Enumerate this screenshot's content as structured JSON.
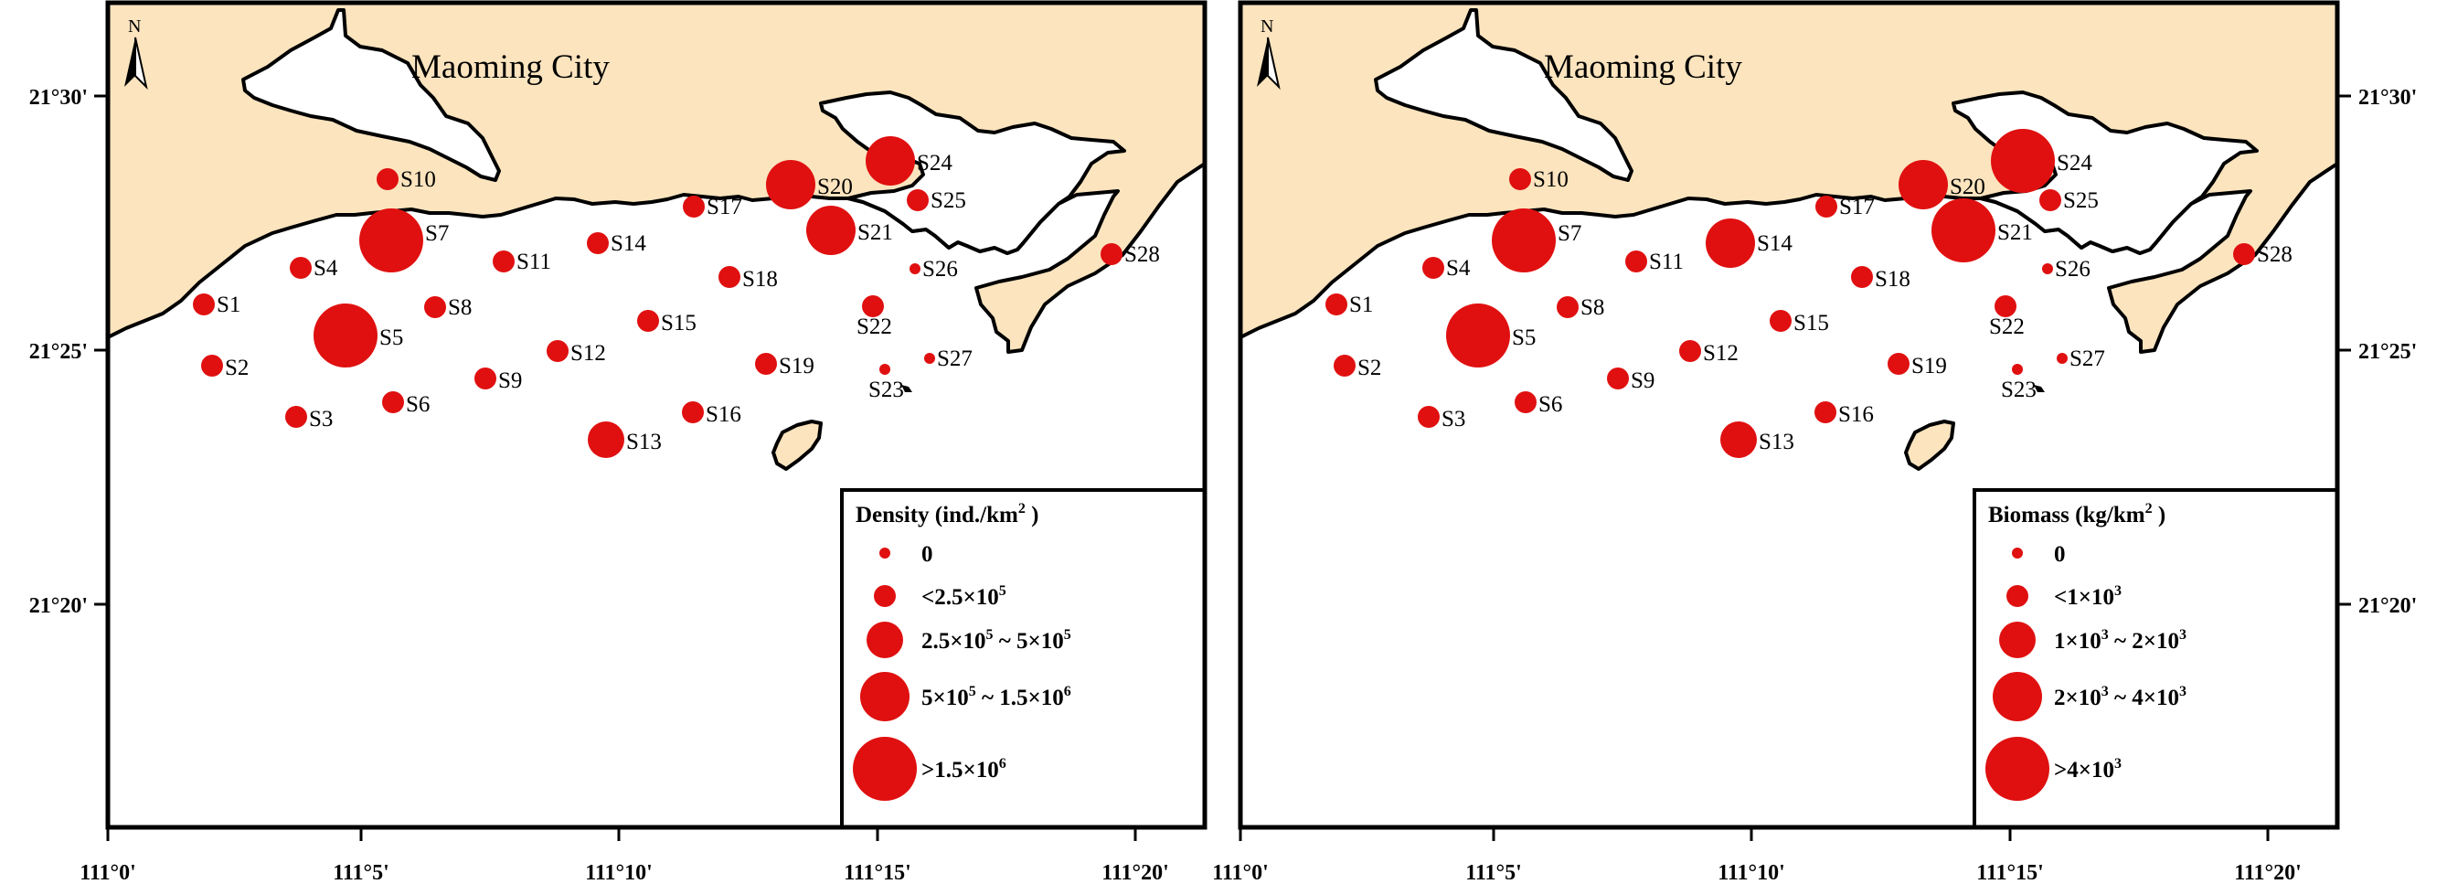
{
  "colors": {
    "land": "#fbe4be",
    "marker": "#e01010",
    "frame": "#000000"
  },
  "north_label": "N",
  "north_icon": "north-arrow-icon",
  "maps": [
    {
      "id": "density",
      "city_label": "Maoming City",
      "legend": {
        "title": "Density (ind./km",
        "title_sup": "2",
        "title_close": ")",
        "items": [
          {
            "parts": [
              "0"
            ]
          },
          {
            "parts": [
              "<2.5×10",
              "5"
            ]
          },
          {
            "parts": [
              "2.5×10",
              "5",
              " ~ 5×10",
              "5"
            ]
          },
          {
            "parts": [
              "5×10",
              "5",
              " ~ 1.5×10",
              "6"
            ]
          },
          {
            "parts": [
              ">1.5×10",
              "6"
            ]
          }
        ]
      },
      "station_classes": {
        "S1": 1,
        "S2": 1,
        "S3": 1,
        "S4": 1,
        "S5": 4,
        "S6": 1,
        "S7": 4,
        "S8": 1,
        "S9": 1,
        "S10": 1,
        "S11": 1,
        "S12": 1,
        "S13": 2,
        "S14": 1,
        "S15": 1,
        "S16": 1,
        "S17": 1,
        "S18": 1,
        "S19": 1,
        "S20": 3,
        "S21": 3,
        "S22": 1,
        "S23": 0,
        "S24": 3,
        "S25": 1,
        "S26": 0,
        "S27": 0,
        "S28": 1
      }
    },
    {
      "id": "biomass",
      "city_label": "Maoming City",
      "legend": {
        "title": "Biomass (kg/km",
        "title_sup": "2",
        "title_close": ")",
        "items": [
          {
            "parts": [
              "0"
            ]
          },
          {
            "parts": [
              "<1×10",
              "3"
            ]
          },
          {
            "parts": [
              "1×10",
              "3",
              " ~ 2×10",
              "3"
            ]
          },
          {
            "parts": [
              "2×10",
              "3",
              " ~  4×10",
              "3"
            ]
          },
          {
            "parts": [
              ">4×10",
              "3"
            ]
          }
        ]
      },
      "station_classes": {
        "S1": 1,
        "S2": 1,
        "S3": 1,
        "S4": 1,
        "S5": 4,
        "S6": 1,
        "S7": 4,
        "S8": 1,
        "S9": 1,
        "S10": 1,
        "S11": 1,
        "S12": 1,
        "S13": 2,
        "S14": 3,
        "S15": 1,
        "S16": 1,
        "S17": 1,
        "S18": 1,
        "S19": 1,
        "S20": 3,
        "S21": 4,
        "S22": 1,
        "S23": 0,
        "S24": 4,
        "S25": 1,
        "S26": 0,
        "S27": 0,
        "S28": 1
      }
    }
  ],
  "stations": [
    "S1",
    "S2",
    "S3",
    "S4",
    "S5",
    "S6",
    "S7",
    "S8",
    "S9",
    "S10",
    "S11",
    "S12",
    "S13",
    "S14",
    "S15",
    "S16",
    "S17",
    "S18",
    "S19",
    "S20",
    "S21",
    "S22",
    "S23",
    "S24",
    "S25",
    "S26",
    "S27",
    "S28"
  ],
  "axes": {
    "x_ticks": [
      "111°0'",
      "111°5'",
      "111°10'",
      "111°15'",
      "111°20'"
    ],
    "y_ticks": [
      "21°30'",
      "21°25'",
      "21°20'"
    ]
  }
}
